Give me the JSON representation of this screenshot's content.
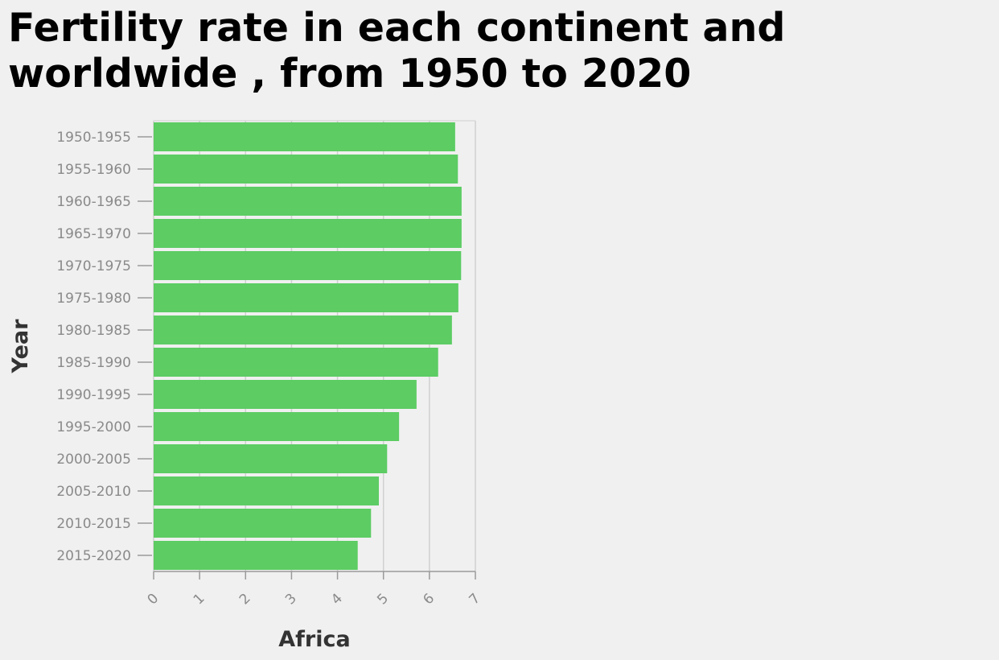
{
  "chart_data": {
    "type": "bar",
    "orientation": "horizontal",
    "title": "Fertility rate in each continent and worldwide , from 1950 to 2020",
    "xlabel": "Africa",
    "ylabel": "Year",
    "categories": [
      "1950-1955",
      "1955-1960",
      "1960-1965",
      "1965-1970",
      "1970-1975",
      "1975-1980",
      "1980-1985",
      "1985-1990",
      "1990-1995",
      "1995-2000",
      "2000-2005",
      "2005-2010",
      "2010-2015",
      "2015-2020"
    ],
    "values": [
      6.56,
      6.62,
      6.7,
      6.7,
      6.69,
      6.63,
      6.49,
      6.19,
      5.72,
      5.34,
      5.08,
      4.9,
      4.73,
      4.44
    ],
    "x_ticks": [
      "0",
      "1",
      "2",
      "3",
      "4",
      "5",
      "6",
      "7"
    ],
    "xlim": [
      0,
      7
    ],
    "grid": true,
    "bar_color": "#5ccc63",
    "grid_color": "#d0d0d0"
  }
}
